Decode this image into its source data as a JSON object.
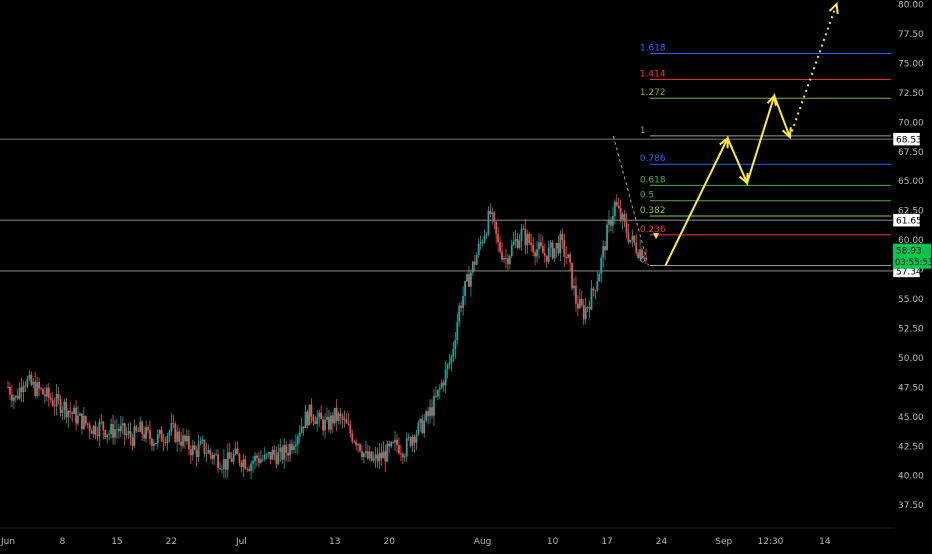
{
  "chart_data": {
    "type": "candlestick",
    "title": "",
    "xlabel": "",
    "ylabel": "",
    "ylim": [
      35.0,
      80.0
    ],
    "grid": false,
    "y_ticks": [
      "37.50",
      "40.00",
      "42.50",
      "45.00",
      "47.50",
      "50.00",
      "52.50",
      "55.00",
      "57.50",
      "60.00",
      "62.50",
      "65.00",
      "67.50",
      "70.00",
      "72.50",
      "75.00",
      "77.50",
      "80.00"
    ],
    "x_ticks": [
      {
        "label": "Jun",
        "day": 0
      },
      {
        "label": "8",
        "day": 7
      },
      {
        "label": "15",
        "day": 14
      },
      {
        "label": "22",
        "day": 21
      },
      {
        "label": "Jul",
        "day": 30
      },
      {
        "label": "13",
        "day": 42
      },
      {
        "label": "20",
        "day": 49
      },
      {
        "label": "Aug",
        "day": 61
      },
      {
        "label": "10",
        "day": 70
      },
      {
        "label": "17",
        "day": 77
      },
      {
        "label": "24",
        "day": 84
      },
      {
        "label": "Sep",
        "day": 92
      },
      {
        "label": "12:30",
        "day": 98
      },
      {
        "label": "14",
        "day": 105
      }
    ],
    "price_path": [
      [
        0,
        47.5
      ],
      [
        1,
        46.5
      ],
      [
        2,
        48.2
      ],
      [
        3,
        47.6
      ],
      [
        4,
        47.2
      ],
      [
        5,
        46.7
      ],
      [
        6,
        46.2
      ],
      [
        7,
        46.0
      ],
      [
        8,
        45.4
      ],
      [
        9,
        44.8
      ],
      [
        10,
        44.4
      ],
      [
        11,
        44.0
      ],
      [
        12,
        44.2
      ],
      [
        13,
        43.6
      ],
      [
        14,
        44.0
      ],
      [
        15,
        43.5
      ],
      [
        16,
        43.2
      ],
      [
        17,
        43.8
      ],
      [
        18,
        43.3
      ],
      [
        19,
        43.0
      ],
      [
        20,
        43.4
      ],
      [
        21,
        43.8
      ],
      [
        22,
        43.2
      ],
      [
        23,
        42.6
      ],
      [
        24,
        42.0
      ],
      [
        25,
        42.4
      ],
      [
        26,
        41.8
      ],
      [
        27,
        41.4
      ],
      [
        28,
        41.0
      ],
      [
        29,
        41.6
      ],
      [
        30,
        41.4
      ],
      [
        31,
        41.0
      ],
      [
        32,
        41.5
      ],
      [
        33,
        41.3
      ],
      [
        34,
        41.8
      ],
      [
        35,
        41.6
      ],
      [
        36,
        42.2
      ],
      [
        37,
        43.4
      ],
      [
        38,
        44.6
      ],
      [
        39,
        45.4
      ],
      [
        40,
        44.6
      ],
      [
        41,
        44.2
      ],
      [
        42,
        45.0
      ],
      [
        43,
        44.6
      ],
      [
        44,
        43.6
      ],
      [
        45,
        42.9
      ],
      [
        46,
        41.5
      ],
      [
        47,
        41.2
      ],
      [
        48,
        41.6
      ],
      [
        49,
        42.0
      ],
      [
        50,
        42.6
      ],
      [
        51,
        42.2
      ],
      [
        52,
        43.4
      ],
      [
        53,
        44.0
      ],
      [
        54,
        45.0
      ],
      [
        55,
        46.4
      ],
      [
        56,
        48.2
      ],
      [
        57,
        50.0
      ],
      [
        58,
        54.2
      ],
      [
        59,
        56.3
      ],
      [
        60,
        58.2
      ],
      [
        61,
        60.2
      ],
      [
        62,
        62.2
      ],
      [
        63,
        59.5
      ],
      [
        64,
        58.4
      ],
      [
        65,
        59.6
      ],
      [
        66,
        60.5
      ],
      [
        67,
        59.8
      ],
      [
        68,
        59.2
      ],
      [
        69,
        58.7
      ],
      [
        70,
        59.1
      ],
      [
        71,
        59.7
      ],
      [
        72,
        58.2
      ],
      [
        73,
        54.8
      ],
      [
        74,
        53.8
      ],
      [
        75,
        55.2
      ],
      [
        76,
        57.4
      ],
      [
        77,
        60.5
      ],
      [
        78,
        63.0
      ],
      [
        79,
        61.5
      ],
      [
        80,
        60.0
      ],
      [
        81,
        59.2
      ],
      [
        82,
        58.9
      ]
    ],
    "last_price": "58.93",
    "countdown": "03:55:53",
    "price_labels": [
      {
        "label": "68.53",
        "value": 68.53
      },
      {
        "label": "61.65",
        "value": 61.65
      },
      {
        "label": "57.34",
        "value": 57.34
      }
    ],
    "fib_levels": [
      {
        "label": "1.618",
        "value": 75.8,
        "color": "#2962ff"
      },
      {
        "label": "1.414",
        "value": 73.6,
        "color": "#f23645"
      },
      {
        "label": "1.272",
        "value": 72.0,
        "color": "#7cb342"
      },
      {
        "label": "1",
        "value": 68.8,
        "color": "#9e9e9e"
      },
      {
        "label": "0.786",
        "value": 66.4,
        "color": "#2962ff"
      },
      {
        "label": "0.618",
        "value": 64.6,
        "color": "#4caf50"
      },
      {
        "label": "0.5",
        "value": 63.3,
        "color": "#4caf50"
      },
      {
        "label": "0.382",
        "value": 62.0,
        "color": "#8bc34a"
      },
      {
        "label": "0.236",
        "value": 60.4,
        "color": "#f23645"
      },
      {
        "label": "0",
        "value": 57.8,
        "color": "#9e9e9e"
      }
    ],
    "horizontal_lines": [
      68.53,
      61.65,
      57.34
    ],
    "projection_path": [
      [
        84.5,
        57.8
      ],
      [
        92.5,
        68.6
      ],
      [
        95,
        64.8
      ],
      [
        98.5,
        72.2
      ],
      [
        100.5,
        68.7
      ]
    ],
    "projection_dotted": [
      [
        100.5,
        68.7
      ],
      [
        106.5,
        80.0
      ]
    ],
    "colors": {
      "up": "#26a69a",
      "down": "#ef5350",
      "projection": "#ffeb3b",
      "last_price_bg": "#00c853",
      "axis_text": "#b2b5be"
    }
  }
}
